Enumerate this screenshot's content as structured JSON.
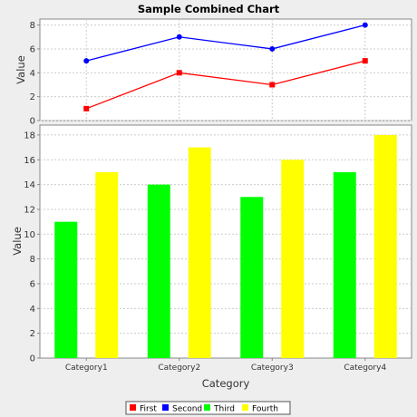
{
  "chart_data": {
    "title": "Sample Combined Chart",
    "type": "combined",
    "categories": [
      "Category1",
      "Category2",
      "Category3",
      "Category4"
    ],
    "xlabel": "Category",
    "legend_position": "bottom",
    "grid": true,
    "top_plot": {
      "type": "line",
      "ylabel": "Value",
      "ylim": [
        0,
        8.5
      ],
      "yticks": [
        0,
        2,
        4,
        6,
        8
      ],
      "series": [
        {
          "name": "First",
          "color": "#ff0000",
          "values": [
            1,
            4,
            3,
            5
          ]
        },
        {
          "name": "Second",
          "color": "#0000ff",
          "values": [
            5,
            7,
            6,
            8
          ]
        }
      ]
    },
    "bottom_plot": {
      "type": "bar",
      "ylabel": "Value",
      "ylim": [
        0,
        18.8
      ],
      "yticks": [
        0,
        2,
        4,
        6,
        8,
        10,
        12,
        14,
        16,
        18
      ],
      "series": [
        {
          "name": "Third",
          "color": "#00ff00",
          "values": [
            11,
            14,
            13,
            15
          ]
        },
        {
          "name": "Fourth",
          "color": "#ffff00",
          "values": [
            15,
            17,
            16,
            18
          ]
        }
      ]
    }
  }
}
